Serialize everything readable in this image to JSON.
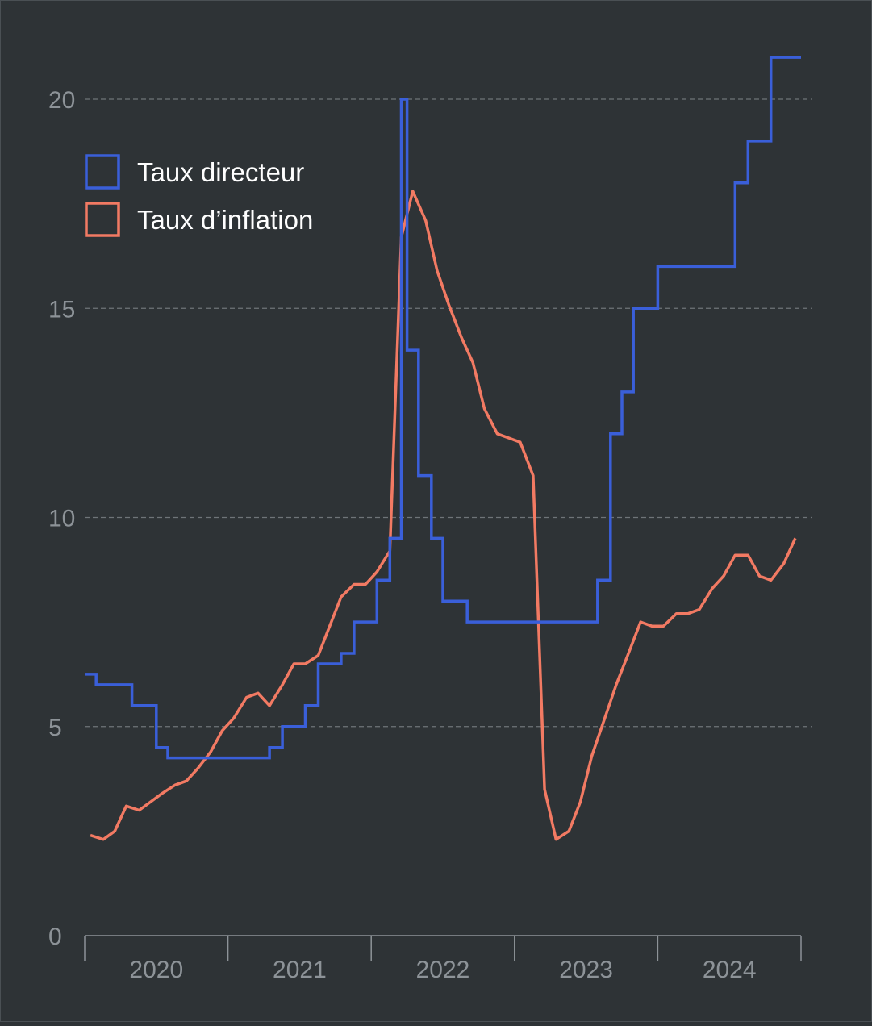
{
  "chart_data": {
    "type": "line",
    "background": "#2e3336",
    "grid": "horizontal dashed",
    "legend_position": "top-left",
    "ylim": [
      0,
      20
    ],
    "yticks": [
      0,
      5,
      10,
      15,
      20
    ],
    "xlim": [
      2020.0,
      2025.0
    ],
    "x_tick_labels": [
      "2020",
      "2021",
      "2022",
      "2023",
      "2024"
    ],
    "series": [
      {
        "name": "Taux directeur",
        "color": "#3a5fd9",
        "style": "step",
        "points": [
          [
            2020.0,
            6.25
          ],
          [
            2020.08,
            6.25
          ],
          [
            2020.08,
            6.0
          ],
          [
            2020.33,
            6.0
          ],
          [
            2020.33,
            5.5
          ],
          [
            2020.5,
            5.5
          ],
          [
            2020.5,
            4.5
          ],
          [
            2020.58,
            4.5
          ],
          [
            2020.58,
            4.25
          ],
          [
            2021.29,
            4.25
          ],
          [
            2021.29,
            4.5
          ],
          [
            2021.38,
            4.5
          ],
          [
            2021.38,
            5.0
          ],
          [
            2021.54,
            5.0
          ],
          [
            2021.54,
            5.5
          ],
          [
            2021.63,
            5.5
          ],
          [
            2021.63,
            6.5
          ],
          [
            2021.79,
            6.5
          ],
          [
            2021.79,
            6.75
          ],
          [
            2021.88,
            6.75
          ],
          [
            2021.88,
            7.5
          ],
          [
            2022.04,
            7.5
          ],
          [
            2022.04,
            8.5
          ],
          [
            2022.13,
            8.5
          ],
          [
            2022.13,
            9.5
          ],
          [
            2022.21,
            9.5
          ],
          [
            2022.21,
            20.0
          ],
          [
            2022.25,
            20.0
          ],
          [
            2022.25,
            14.0
          ],
          [
            2022.33,
            14.0
          ],
          [
            2022.33,
            11.0
          ],
          [
            2022.42,
            11.0
          ],
          [
            2022.42,
            9.5
          ],
          [
            2022.5,
            9.5
          ],
          [
            2022.5,
            8.0
          ],
          [
            2022.67,
            8.0
          ],
          [
            2022.67,
            7.5
          ],
          [
            2023.58,
            7.5
          ],
          [
            2023.58,
            8.5
          ],
          [
            2023.67,
            8.5
          ],
          [
            2023.67,
            12.0
          ],
          [
            2023.75,
            12.0
          ],
          [
            2023.75,
            13.0
          ],
          [
            2023.83,
            13.0
          ],
          [
            2023.83,
            15.0
          ],
          [
            2024.0,
            15.0
          ],
          [
            2024.0,
            16.0
          ],
          [
            2024.54,
            16.0
          ],
          [
            2024.54,
            18.0
          ],
          [
            2024.63,
            18.0
          ],
          [
            2024.63,
            19.0
          ],
          [
            2024.79,
            19.0
          ],
          [
            2024.79,
            21.0
          ],
          [
            2025.0,
            21.0
          ]
        ]
      },
      {
        "name": "Taux d’inflation",
        "color": "#f27a63",
        "style": "line",
        "points": [
          [
            2020.04,
            2.4
          ],
          [
            2020.13,
            2.3
          ],
          [
            2020.21,
            2.5
          ],
          [
            2020.29,
            3.1
          ],
          [
            2020.38,
            3.0
          ],
          [
            2020.46,
            3.2
          ],
          [
            2020.54,
            3.4
          ],
          [
            2020.63,
            3.6
          ],
          [
            2020.71,
            3.7
          ],
          [
            2020.79,
            4.0
          ],
          [
            2020.88,
            4.4
          ],
          [
            2020.96,
            4.9
          ],
          [
            2021.04,
            5.2
          ],
          [
            2021.13,
            5.7
          ],
          [
            2021.21,
            5.8
          ],
          [
            2021.29,
            5.5
          ],
          [
            2021.38,
            6.0
          ],
          [
            2021.46,
            6.5
          ],
          [
            2021.54,
            6.5
          ],
          [
            2021.63,
            6.7
          ],
          [
            2021.71,
            7.4
          ],
          [
            2021.79,
            8.1
          ],
          [
            2021.88,
            8.4
          ],
          [
            2021.96,
            8.4
          ],
          [
            2022.04,
            8.7
          ],
          [
            2022.13,
            9.2
          ],
          [
            2022.21,
            16.7
          ],
          [
            2022.29,
            17.8
          ],
          [
            2022.38,
            17.1
          ],
          [
            2022.46,
            15.9
          ],
          [
            2022.54,
            15.1
          ],
          [
            2022.63,
            14.3
          ],
          [
            2022.71,
            13.7
          ],
          [
            2022.79,
            12.6
          ],
          [
            2022.88,
            12.0
          ],
          [
            2022.96,
            11.9
          ],
          [
            2023.04,
            11.8
          ],
          [
            2023.13,
            11.0
          ],
          [
            2023.21,
            3.5
          ],
          [
            2023.29,
            2.3
          ],
          [
            2023.38,
            2.5
          ],
          [
            2023.46,
            3.2
          ],
          [
            2023.54,
            4.3
          ],
          [
            2023.63,
            5.2
          ],
          [
            2023.71,
            6.0
          ],
          [
            2023.79,
            6.7
          ],
          [
            2023.88,
            7.5
          ],
          [
            2023.96,
            7.4
          ],
          [
            2024.04,
            7.4
          ],
          [
            2024.13,
            7.7
          ],
          [
            2024.21,
            7.7
          ],
          [
            2024.29,
            7.8
          ],
          [
            2024.38,
            8.3
          ],
          [
            2024.46,
            8.6
          ],
          [
            2024.54,
            9.1
          ],
          [
            2024.63,
            9.1
          ],
          [
            2024.71,
            8.6
          ],
          [
            2024.79,
            8.5
          ],
          [
            2024.88,
            8.9
          ],
          [
            2024.96,
            9.5
          ]
        ]
      }
    ]
  }
}
